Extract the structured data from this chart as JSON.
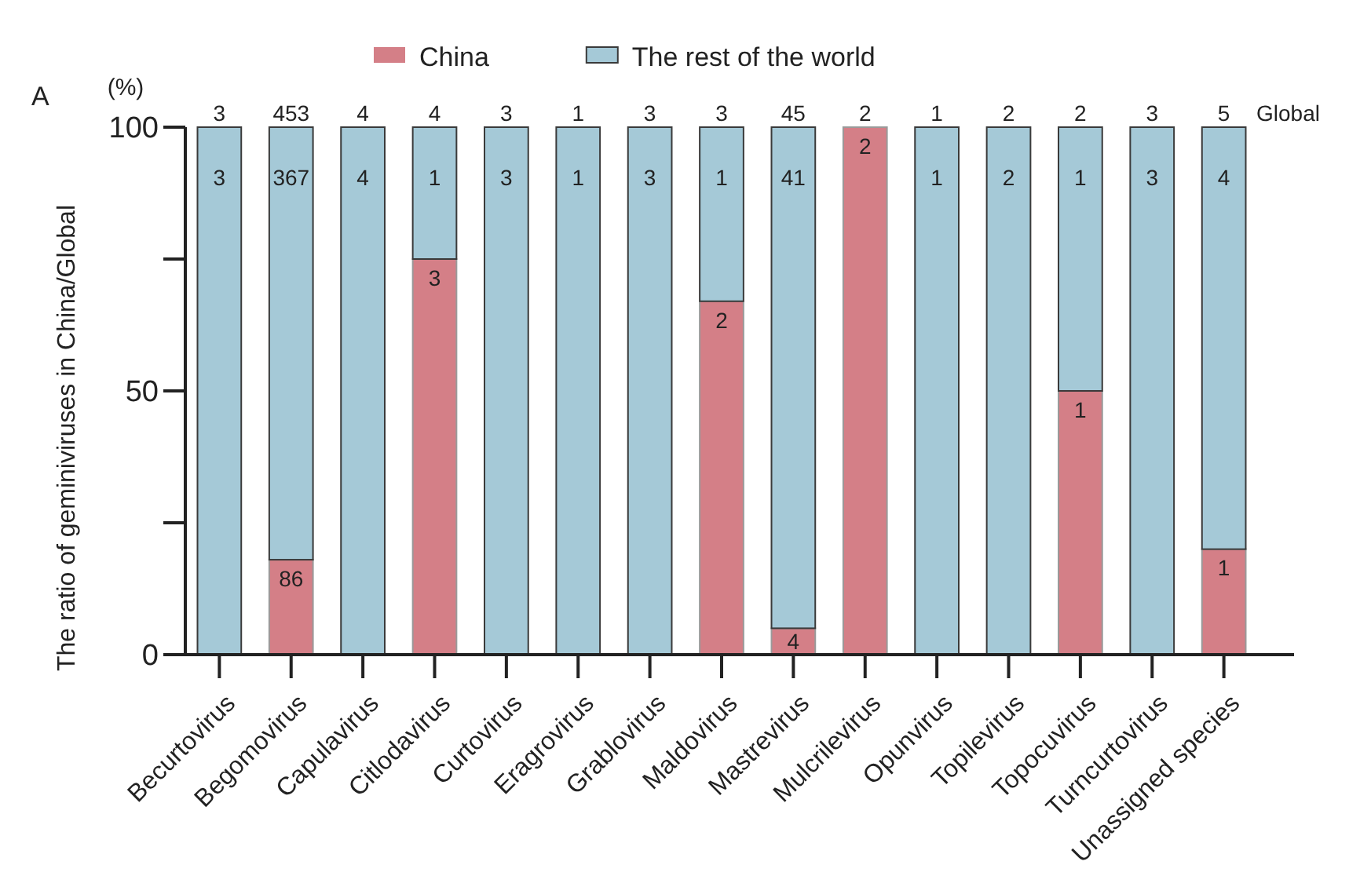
{
  "chart_data": {
    "type": "bar",
    "title": "A",
    "ylabel": "The ratio of geminiviruses in China/Global",
    "annotations": [
      "(%)",
      "Global",
      "3",
      "453",
      "4",
      "4",
      "3",
      "1",
      "3",
      "3",
      "45",
      "2",
      "1",
      "2",
      "2",
      "3",
      "5",
      {
        "text": "3",
        "x": "Becurtovirus",
        "y": 100
      },
      {
        "text": "86",
        "x": "Begomovirus",
        "y": 18
      },
      {
        "text": "367",
        "x": "Begomovirus",
        "y": 100
      },
      {
        "text": "4",
        "x": "Capulavirus",
        "y": 100
      },
      {
        "text": "3",
        "x": "Citlodavirus",
        "y": 75
      },
      {
        "text": "1",
        "x": "Citlodavirus",
        "y": 100
      },
      {
        "text": "3",
        "x": "Curtovirus",
        "y": 100
      },
      {
        "text": "1",
        "x": "Eragrovirus",
        "y": 100
      },
      {
        "text": "3",
        "x": "Grablovirus",
        "y": 100
      },
      {
        "text": "2",
        "x": "Maldovirus",
        "y": 67
      },
      {
        "text": "1",
        "x": "Maldovirus",
        "y": 100
      },
      {
        "text": "4",
        "x": "Mastrevirus",
        "y": 5
      },
      {
        "text": "41",
        "x": "Mastrevirus",
        "y": 100
      },
      {
        "text": "2",
        "x": "Mulcrilevirus",
        "y": 100
      },
      {
        "text": "1",
        "x": "Opunvirus",
        "y": 100
      },
      {
        "text": "2",
        "x": "Topilevirus",
        "y": 100
      },
      {
        "text": "1",
        "x": "Topocuvirus",
        "y": 50
      },
      {
        "text": "1",
        "x": "Topocuvirus",
        "y": 100
      },
      {
        "text": "3",
        "x": "Turncurtovirus",
        "y": 100
      },
      {
        "text": "1",
        "x": "Unassigned species",
        "y": 20
      },
      {
        "text": "4",
        "x": "Unassigned species",
        "y": 100
      }
    ],
    "categories": [
      "Becurtovirus",
      "Begomovirus",
      "Capulavirus",
      "Citlodavirus",
      "Curtovirus",
      "Eragrovirus",
      "Grablovirus",
      "Maldovirus",
      "Mastrevirus",
      "Mulcrilevirus",
      "Opunvirus",
      "Topilevirus",
      "Topocuvirus",
      "Turncurtovirus",
      "Unassigned species"
    ],
    "series": [
      {
        "name": "China",
        "color": "#d47f87",
        "values": [
          0,
          18,
          0,
          75,
          0,
          0,
          0,
          67,
          5,
          100,
          0,
          0,
          50,
          0,
          20
        ]
      },
      {
        "name": "The rest of the world",
        "color": "#a5c9d7",
        "values": [
          100,
          82,
          100,
          25,
          100,
          100,
          100,
          33,
          95,
          0,
          100,
          100,
          50,
          100,
          80
        ]
      }
    ],
    "stacked": true,
    "ylim": [
      0,
      100
    ],
    "yticks": [
      0,
      {
        "value": 25,
        "label": null
      },
      50,
      {
        "value": 75,
        "label": null
      },
      100
    ],
    "legend": "top"
  }
}
